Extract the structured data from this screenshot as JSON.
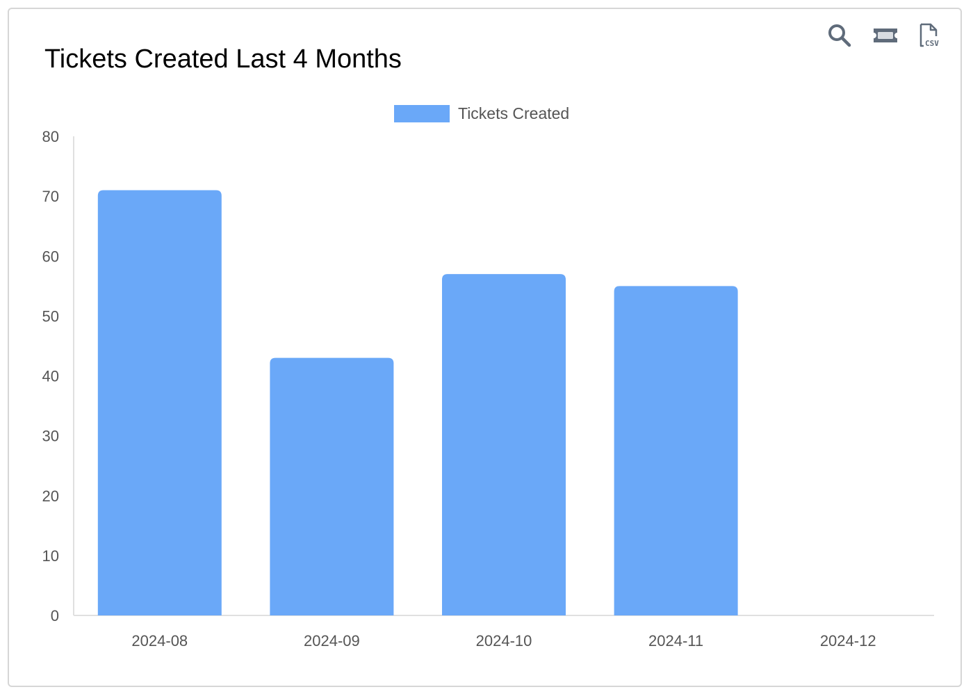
{
  "toolbar": {
    "zoom_icon": "search-icon",
    "reset_icon": "ticket-icon",
    "csv_icon": "csv-file-icon",
    "csv_text": "CSV"
  },
  "chart_data": {
    "type": "bar",
    "title": "Tickets Created Last 4 Months",
    "categories": [
      "2024-08",
      "2024-09",
      "2024-10",
      "2024-11",
      "2024-12"
    ],
    "series": [
      {
        "name": "Tickets Created",
        "values": [
          71,
          43,
          57,
          55,
          0
        ],
        "color": "#6aa8f8"
      }
    ],
    "ylim": [
      0,
      80
    ],
    "yticks": [
      0,
      10,
      20,
      30,
      40,
      50,
      60,
      70,
      80
    ],
    "xlabel": "",
    "ylabel": "",
    "legend": "top-center",
    "grid": false
  }
}
